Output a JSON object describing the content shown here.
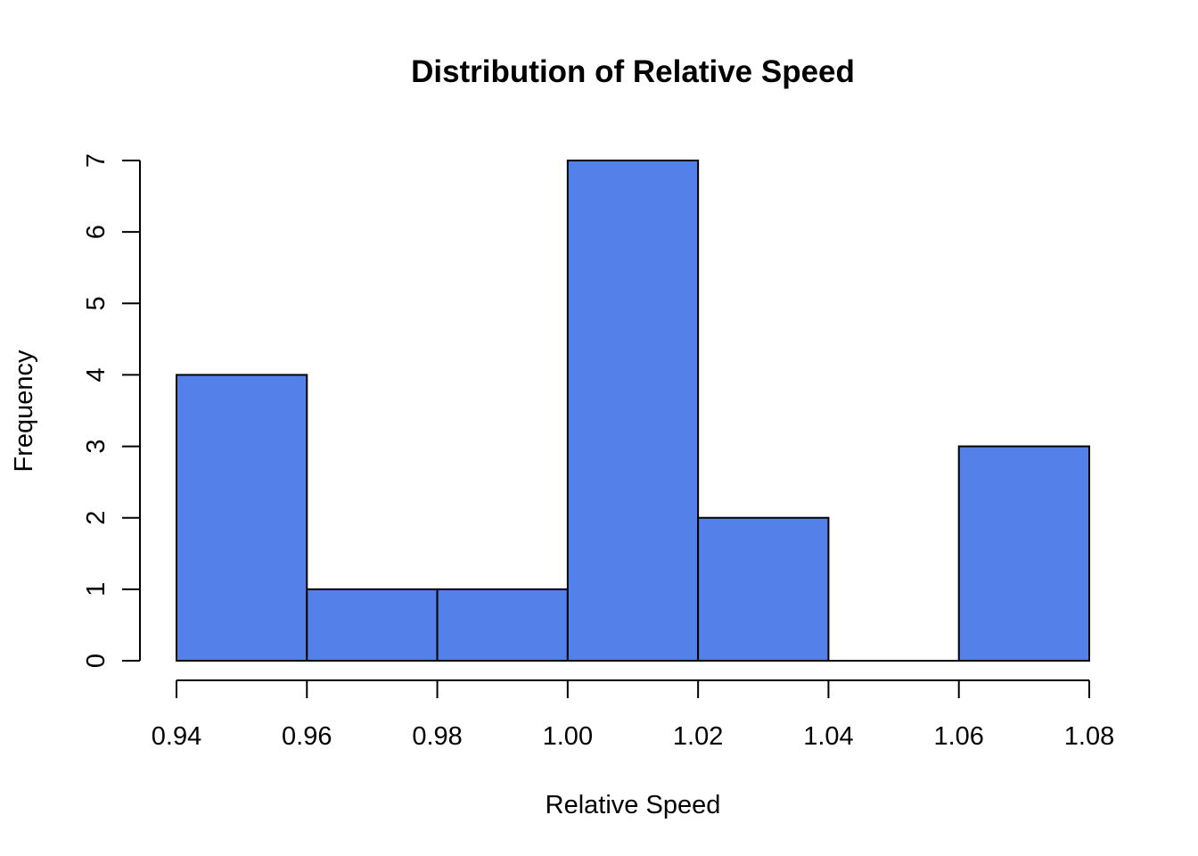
{
  "chart_data": {
    "type": "bar",
    "subtype": "histogram",
    "title": "Distribution of Relative Speed",
    "xlabel": "Relative Speed",
    "ylabel": "Frequency",
    "bins": [
      {
        "from": 0.94,
        "to": 0.96,
        "count": 4
      },
      {
        "from": 0.96,
        "to": 0.98,
        "count": 1
      },
      {
        "from": 0.98,
        "to": 1.0,
        "count": 1
      },
      {
        "from": 1.0,
        "to": 1.02,
        "count": 7
      },
      {
        "from": 1.02,
        "to": 1.04,
        "count": 2
      },
      {
        "from": 1.04,
        "to": 1.06,
        "count": 0
      },
      {
        "from": 1.06,
        "to": 1.08,
        "count": 3
      }
    ],
    "xlim": [
      0.94,
      1.08
    ],
    "ylim": [
      0,
      7
    ],
    "x_ticks": [
      "0.94",
      "0.96",
      "0.98",
      "1.00",
      "1.02",
      "1.04",
      "1.06",
      "1.08"
    ],
    "x_tick_values": [
      0.94,
      0.96,
      0.98,
      1.0,
      1.02,
      1.04,
      1.06,
      1.08
    ],
    "y_ticks": [
      "0",
      "1",
      "2",
      "3",
      "4",
      "5",
      "6",
      "7"
    ],
    "y_tick_values": [
      0,
      1,
      2,
      3,
      4,
      5,
      6,
      7
    ],
    "grid": false,
    "legend": "none",
    "colors": {
      "bar_fill": "#5480E9",
      "bar_stroke": "#000000",
      "text": "#000000",
      "background": "#FFFFFF"
    }
  }
}
